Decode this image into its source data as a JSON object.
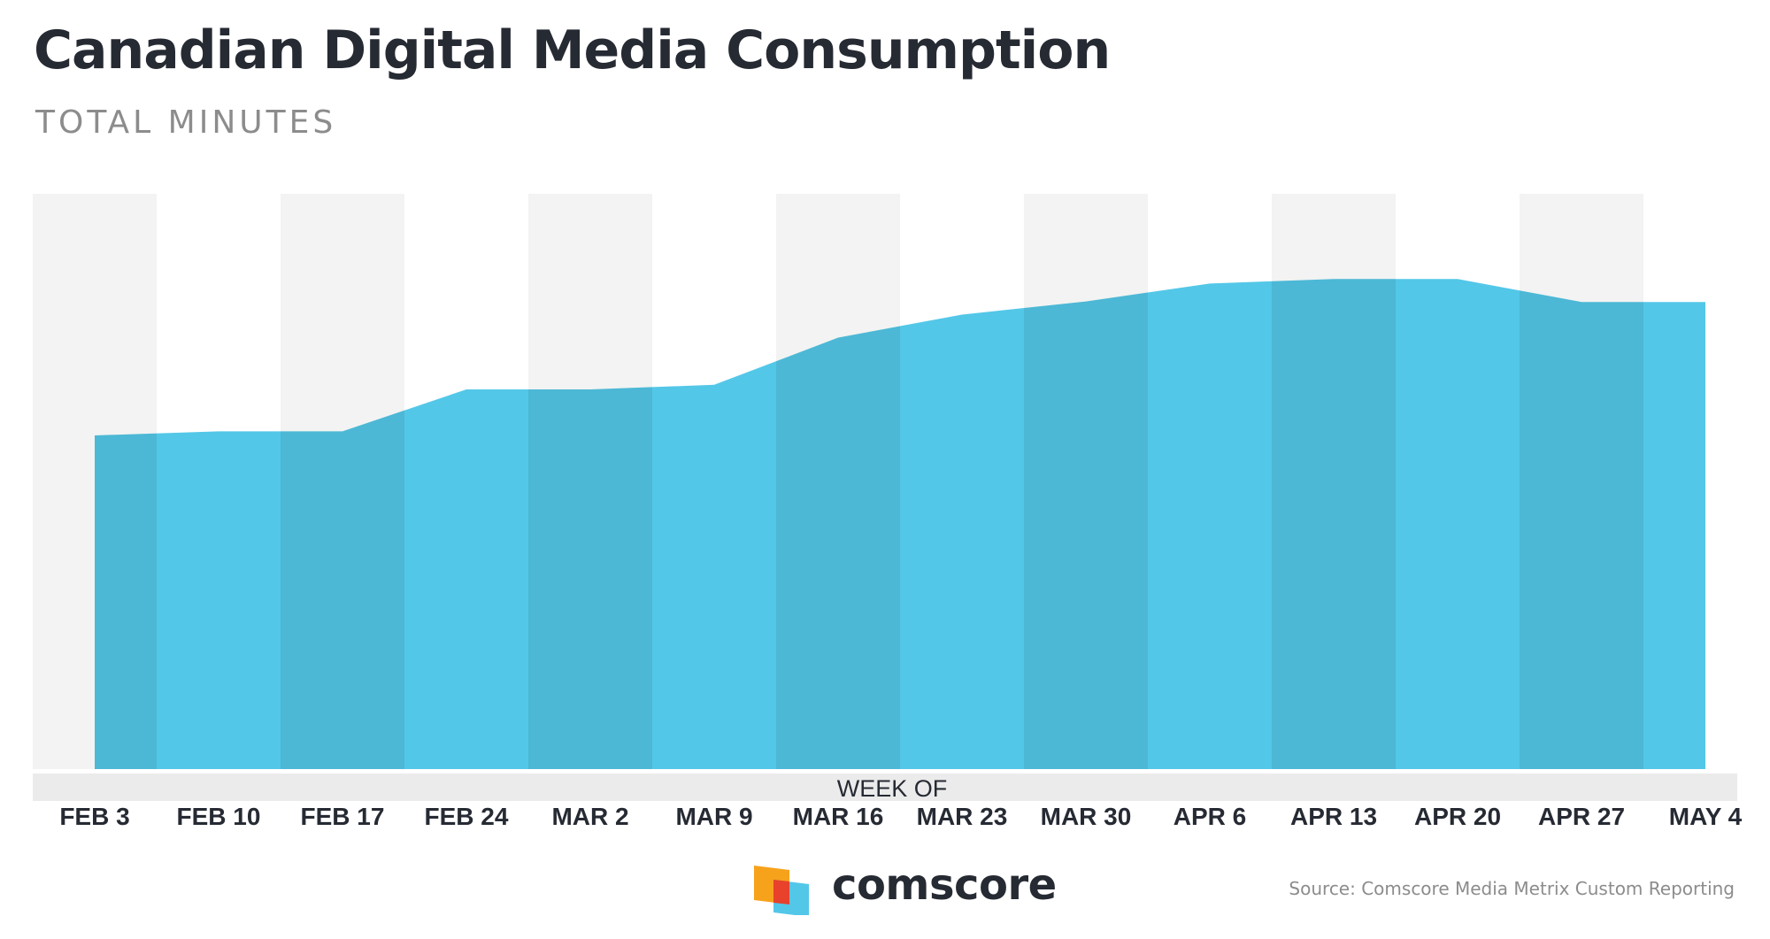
{
  "header": {
    "title": "Canadian Digital Media Consumption",
    "subtitle": "TOTAL MINUTES"
  },
  "footer": {
    "brand": "comscore",
    "source": "Source: Comscore Media Metrix Custom Reporting"
  },
  "colors": {
    "area": "#53c7e8",
    "band": "#f2f3f2",
    "axis_strip": "#ebebeb",
    "logo_orange": "#f7a21b",
    "logo_red": "#e8412c",
    "logo_blue": "#53c7e8"
  },
  "chart_data": {
    "type": "area",
    "title": "Canadian Digital Media Consumption",
    "subtitle": "TOTAL MINUTES",
    "xlabel": "WEEK OF",
    "ylabel": "",
    "categories": [
      "FEB 3",
      "FEB 10",
      "FEB 17",
      "FEB 24",
      "MAR 2",
      "MAR 9",
      "MAR 16",
      "MAR 23",
      "MAR 30",
      "APR 6",
      "APR 13",
      "APR 20",
      "APR 27",
      "MAY 4"
    ],
    "series": [
      {
        "values": [
          58,
          58.7,
          58.7,
          66,
          66,
          66.8,
          75,
          79,
          81.3,
          84.4,
          85.2,
          85.2,
          81.2,
          81.2
        ]
      }
    ],
    "ylim": [
      0,
      100
    ],
    "y_axis_shown": false,
    "alternating_bands": true,
    "grid": false,
    "legend": "none"
  }
}
